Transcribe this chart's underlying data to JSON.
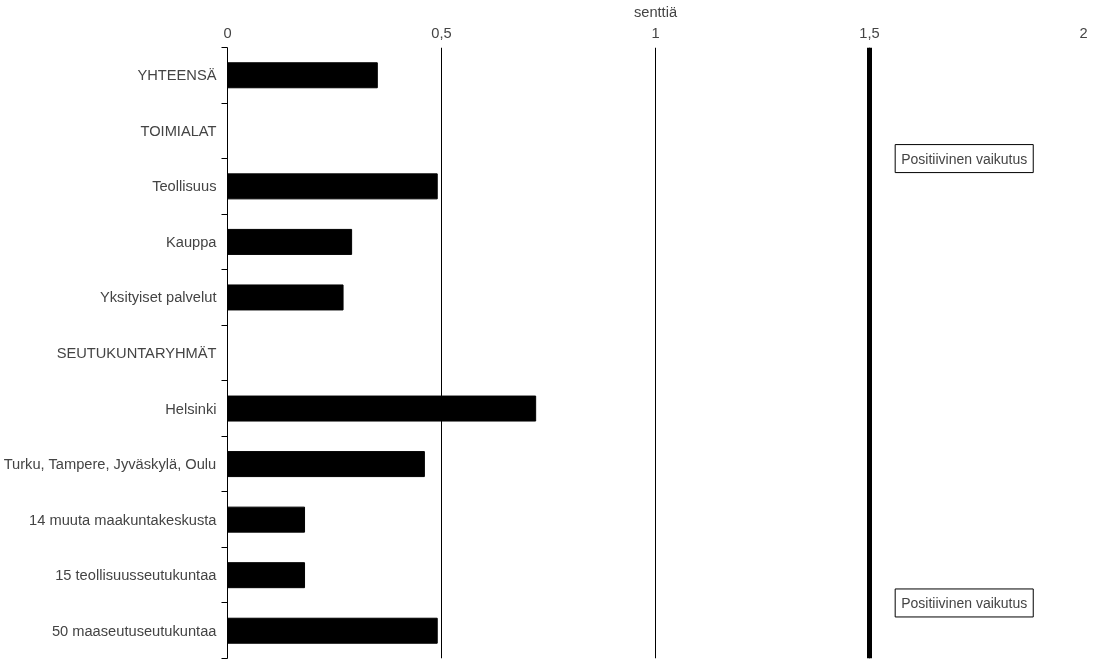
{
  "chart_data": {
    "type": "bar",
    "orientation": "horizontal",
    "xlabel": "senttiä",
    "categories": [
      "YHTEENSÄ",
      "TOIMIALAT",
      "Teollisuus",
      "Kauppa",
      "Yksityiset palvelut",
      "SEUTUKUNTARYHMÄT",
      "Helsinki",
      "Turku, Tampere, Jyväskylä, Oulu",
      "14 muuta maakuntakeskusta",
      "15 teollisuusseutukuntaa",
      "50 maaseutuseutukuntaa"
    ],
    "values": [
      0.35,
      null,
      0.49,
      0.29,
      0.27,
      null,
      0.72,
      0.46,
      0.18,
      0.18,
      0.49
    ],
    "color": "#000000",
    "xlim": [
      0,
      2
    ],
    "xticks": [
      0,
      {
        "value": 0.5,
        "label": "0,5"
      },
      1,
      {
        "value": 1.5,
        "label": "1,5"
      },
      2
    ],
    "grid": "x",
    "ref_lines": [
      {
        "axis": "x",
        "value": 1.5,
        "color": "#000000"
      }
    ],
    "annotations": [
      "Positiivinen vaikutus",
      "Positiivinen vaikutus"
    ]
  }
}
